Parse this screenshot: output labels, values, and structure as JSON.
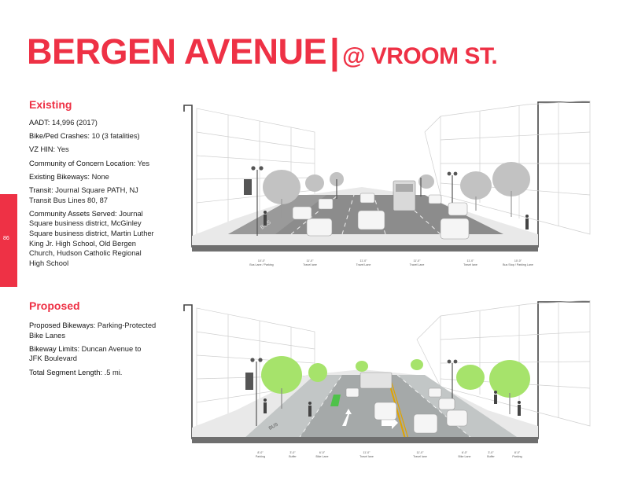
{
  "page": {
    "number": "86"
  },
  "title": {
    "main": "BERGEN AVENUE",
    "separator": "|",
    "sub": "@ VROOM ST."
  },
  "existing": {
    "heading": "Existing",
    "items": [
      {
        "label": "AADT:",
        "value": " 14,996 (2017)"
      },
      {
        "label": "Bike/Ped Crashes:",
        "value": " 10 (3 fatalities)"
      },
      {
        "label": "VZ HIN:",
        "value": " Yes"
      },
      {
        "label": "Community of Concern Location:",
        "value": " Yes"
      },
      {
        "label": "Existing Bikeways:",
        "value": " None"
      },
      {
        "label": "Transit:",
        "value": " Journal Square PATH, NJ Transit Bus Lines 80, 87"
      },
      {
        "label": "Community Assets Served:",
        "value": " Journal Square business district, McGinley Square business district, Martin Luther King Jr. High School, Old Bergen Church, Hudson Catholic Regional High School"
      }
    ]
  },
  "proposed": {
    "heading": "Proposed",
    "items": [
      {
        "label": "Proposed Bikeways:",
        "value": " Parking-Protected Bike Lanes"
      },
      {
        "label": "Bikeway Limits:",
        "value": " Duncan Avenue to JFK Boulevard"
      },
      {
        "label": "Total Segment Length:",
        "value": " .5 mi."
      }
    ]
  },
  "existing_section": {
    "lanes": [
      {
        "width": "10'-0\"",
        "label": "Bus Lane / Parking"
      },
      {
        "width": "11'-0\"",
        "label": "Travel lane"
      },
      {
        "width": "11'-0\"",
        "label": "Travel Lane"
      },
      {
        "width": "11'-0\"",
        "label": "Travel Lane"
      },
      {
        "width": "11'-0\"",
        "label": "Travel lane"
      },
      {
        "width": "10'-0\"",
        "label": "Bus Stop / Parking Lane"
      }
    ]
  },
  "proposed_section": {
    "lanes": [
      {
        "width": "8'-0\"",
        "label": "Parking"
      },
      {
        "width": "3'-0\"",
        "label": "Buffer"
      },
      {
        "width": "6'-0\"",
        "label": "Bike Lane"
      },
      {
        "width": "11'-0\"",
        "label": "Travel lane"
      },
      {
        "width": "11'-0\"",
        "label": "Travel lane"
      },
      {
        "width": "6'-0\"",
        "label": "Bike Lane"
      },
      {
        "width": "3'-0\"",
        "label": "Buffer"
      },
      {
        "width": "8'-0\"",
        "label": "Parking"
      }
    ]
  },
  "colors": {
    "accent": "#ee3145",
    "tree_green": "#a6e36b",
    "bike_lane": "#4fc24a",
    "centerline": "#e0a400"
  }
}
